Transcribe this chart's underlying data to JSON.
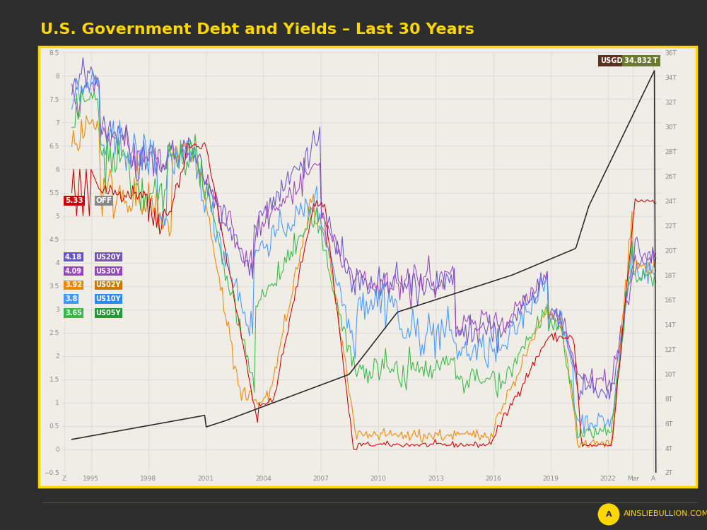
{
  "title": "U.S. Government Debt and Yields – Last 30 Years",
  "title_color": "#FFD700",
  "background_color": "#2d2d2d",
  "chart_bg": "#f0ede6",
  "border_color": "#FFD700",
  "series": {
    "OFF": {
      "color": "#cc0000",
      "label": "OFF",
      "value": "5.33"
    },
    "US20Y": {
      "color": "#6655cc",
      "label": "US20Y",
      "value": "4.18"
    },
    "US30Y": {
      "color": "#9944bb",
      "label": "US30Y",
      "value": "4.09"
    },
    "US02Y": {
      "color": "#ee8800",
      "label": "US02Y",
      "value": "3.92"
    },
    "US10Y": {
      "color": "#4499ff",
      "label": "US10Y",
      "value": "3.8"
    },
    "US05Y": {
      "color": "#33bb44",
      "label": "US05Y",
      "value": "3.65"
    },
    "USGD": {
      "color": "#222222",
      "label": "USGD",
      "value": "34.832T"
    }
  },
  "left_ylim": [
    -0.5,
    8.5
  ],
  "right_ylim": [
    2,
    36
  ],
  "left_yticks": [
    -0.5,
    0,
    0.5,
    1.0,
    1.5,
    2.0,
    2.5,
    3.0,
    3.5,
    4.0,
    4.5,
    5.0,
    5.5,
    6.0,
    6.5,
    7.0,
    7.5,
    8.0,
    8.5
  ],
  "right_yticks": [
    2,
    4,
    6,
    8,
    10,
    12,
    14,
    16,
    18,
    20,
    22,
    24,
    26,
    28,
    30,
    32,
    34,
    36
  ],
  "xtick_years": [
    1995,
    1998,
    2001,
    2004,
    2007,
    2010,
    2013,
    2016,
    2019,
    2022
  ],
  "grid_color": "#cccccc",
  "tick_color": "#888888",
  "footer_text": "AINSLIEBULLION.COM.AU",
  "usgd_label_bg": "#5a3020",
  "usgd_value_bg": "#6a7a30",
  "off_label_bg": "#cc0000",
  "off_gray_bg": "#888888",
  "legend_items": [
    {
      "value": "4.18",
      "label": "US20Y",
      "val_color": "#6655cc",
      "lbl_color": "#7755bb"
    },
    {
      "value": "4.09",
      "label": "US30Y",
      "val_color": "#9944bb",
      "lbl_color": "#9944bb"
    },
    {
      "value": "3.92",
      "label": "US02Y",
      "val_color": "#ee8800",
      "lbl_color": "#cc7700"
    },
    {
      "value": "3.8",
      "label": "US10Y",
      "val_color": "#4499ff",
      "lbl_color": "#3388ee"
    },
    {
      "value": "3.65",
      "label": "US05Y",
      "val_color": "#33bb44",
      "lbl_color": "#229933"
    }
  ]
}
